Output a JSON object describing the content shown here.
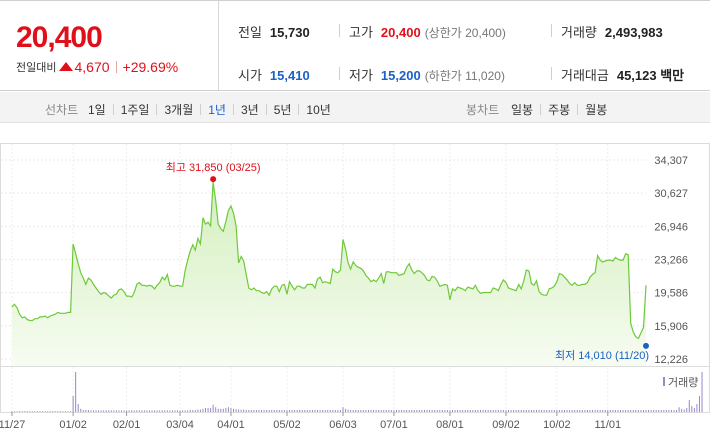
{
  "summary": {
    "price": "20,400",
    "change_label": "전일대비",
    "change_amount": "4,670",
    "change_pct": "+29.69%",
    "prev_close": {
      "label": "전일",
      "value": "15,730"
    },
    "high": {
      "label": "고가",
      "value": "20,400",
      "sub": "(상한가 20,400)"
    },
    "volume": {
      "label": "거래량",
      "value": "2,493,983"
    },
    "open": {
      "label": "시가",
      "value": "15,410"
    },
    "low": {
      "label": "저가",
      "value": "15,200",
      "sub": "(하한가 11,020)"
    },
    "turnover": {
      "label": "거래대금",
      "value": "45,123 백만"
    }
  },
  "period_tabs": {
    "title": "선차트",
    "items": [
      "1일",
      "1주일",
      "3개월",
      "1년",
      "3년",
      "5년",
      "10년"
    ],
    "active": "1년"
  },
  "candle_tabs": {
    "title": "봉차트",
    "items": [
      "일봉",
      "주봉",
      "월봉"
    ]
  },
  "colors": {
    "up": "#e0101b",
    "down": "#1a60c8",
    "line": "#6ec93a",
    "area_top": "#d9f3c7",
    "volume": "#9b87c9",
    "tab_active": "#1a60c8"
  },
  "chart_data": {
    "type": "area",
    "ylim": [
      12226,
      34307
    ],
    "y_ticks": [
      "34,307",
      "30,627",
      "26,946",
      "23,266",
      "19,586",
      "15,906",
      "12,226"
    ],
    "x_tick_labels": [
      "11/27",
      "01/02",
      "02/01",
      "03/04",
      "04/01",
      "05/02",
      "06/03",
      "07/01",
      "08/01",
      "09/02",
      "10/02",
      "11/01"
    ],
    "x_tick_index": [
      0,
      24,
      45,
      66,
      86,
      108,
      130,
      150,
      172,
      194,
      214,
      234
    ],
    "max_label": "최고 31,850 (03/25)",
    "min_label": "최저 14,010 (11/20)",
    "max_index": 79,
    "max_value": 31850,
    "min_index": 249,
    "min_value": 14010,
    "volume_label": "거래량",
    "series": [
      {
        "name": "",
        "values": [
          18000,
          18300,
          17900,
          17200,
          16800,
          16900,
          16600,
          16500,
          16500,
          16700,
          16700,
          16900,
          16900,
          17000,
          16800,
          17000,
          17100,
          17200,
          17400,
          17300,
          17300,
          17300,
          17400,
          17400,
          25000,
          23900,
          22800,
          21800,
          21200,
          20500,
          21200,
          21000,
          20500,
          20100,
          19700,
          19400,
          19600,
          19500,
          19200,
          19000,
          19300,
          19400,
          19900,
          20000,
          19700,
          19200,
          19200,
          19100,
          19600,
          20500,
          20700,
          20400,
          20400,
          20300,
          20400,
          20300,
          20000,
          20400,
          20700,
          21300,
          21000,
          21600,
          20400,
          20300,
          20300,
          20400,
          20300,
          20300,
          22000,
          23200,
          24200,
          24900,
          24300,
          25600,
          25000,
          27900,
          27200,
          27400,
          27000,
          31850,
          29800,
          27200,
          26700,
          26400,
          27500,
          28700,
          29200,
          28400,
          27000,
          22900,
          23600,
          23100,
          21600,
          20100,
          19900,
          20100,
          19800,
          19800,
          19600,
          19500,
          19700,
          19300,
          20000,
          20300,
          20300,
          19700,
          20400,
          20500,
          19400,
          20800,
          20300,
          19900,
          20300,
          20300,
          20100,
          20100,
          20500,
          20500,
          20500,
          20100,
          21100,
          21300,
          20700,
          20800,
          20700,
          20600,
          22200,
          21900,
          21800,
          22100,
          25500,
          24400,
          22900,
          22200,
          23000,
          22600,
          22400,
          22300,
          22000,
          21500,
          21200,
          20800,
          21000,
          20800,
          21200,
          21700,
          20600,
          21900,
          21900,
          21800,
          21800,
          21800,
          21500,
          21600,
          21700,
          22400,
          22800,
          22100,
          21700,
          22000,
          22000,
          21800,
          21500,
          21000,
          20900,
          21400,
          21300,
          20900,
          20300,
          20400,
          20500,
          20400,
          18800,
          20000,
          19800,
          20200,
          20100,
          20000,
          19800,
          20200,
          20100,
          20000,
          20400,
          19800,
          19500,
          19600,
          19600,
          19600,
          19600,
          20100,
          20000,
          19800,
          20500,
          21000,
          20700,
          20100,
          20000,
          19900,
          19800,
          20500,
          20000,
          20900,
          22100,
          22000,
          20600,
          20400,
          20900,
          19700,
          19400,
          19300,
          19300,
          20000,
          20100,
          20300,
          20800,
          21700,
          21600,
          21300,
          21000,
          20600,
          20400,
          20700,
          20400,
          20400,
          20500,
          20500,
          20700,
          21300,
          21600,
          21800,
          23700,
          23200,
          23000,
          23100,
          23200,
          23200,
          23100,
          23500,
          23300,
          23200,
          23200,
          23900,
          23800,
          16200,
          15200,
          14700,
          14500,
          15100,
          15730,
          20400
        ]
      }
    ],
    "volume": [
      2,
      2,
      2,
      2,
      2,
      2,
      2,
      2,
      2,
      2,
      2,
      2,
      2,
      2,
      2,
      2,
      2,
      2,
      2,
      2,
      2,
      2,
      2,
      2,
      40,
      100,
      20,
      8,
      5,
      5,
      5,
      4,
      4,
      4,
      4,
      4,
      4,
      4,
      4,
      4,
      4,
      4,
      4,
      4,
      4,
      4,
      4,
      4,
      4,
      4,
      4,
      4,
      4,
      4,
      4,
      4,
      4,
      4,
      4,
      4,
      4,
      4,
      4,
      4,
      4,
      4,
      4,
      4,
      4,
      4,
      5,
      5,
      5,
      6,
      6,
      8,
      10,
      10,
      10,
      18,
      12,
      8,
      8,
      8,
      10,
      12,
      10,
      8,
      7,
      6,
      6,
      6,
      5,
      5,
      5,
      5,
      5,
      5,
      5,
      5,
      5,
      5,
      5,
      5,
      5,
      5,
      5,
      5,
      5,
      5,
      5,
      5,
      5,
      5,
      5,
      5,
      5,
      5,
      5,
      5,
      5,
      5,
      5,
      5,
      5,
      5,
      5,
      5,
      5,
      5,
      12,
      8,
      6,
      5,
      5,
      5,
      5,
      5,
      5,
      5,
      5,
      5,
      5,
      5,
      5,
      5,
      5,
      5,
      5,
      5,
      5,
      5,
      5,
      5,
      5,
      5,
      5,
      5,
      5,
      5,
      5,
      5,
      5,
      5,
      5,
      5,
      5,
      5,
      5,
      5,
      5,
      5,
      5,
      5,
      5,
      5,
      5,
      5,
      5,
      5,
      5,
      5,
      5,
      5,
      5,
      5,
      5,
      5,
      5,
      5,
      5,
      5,
      5,
      5,
      5,
      5,
      5,
      5,
      5,
      5,
      5,
      5,
      5,
      5,
      5,
      5,
      5,
      5,
      5,
      5,
      5,
      5,
      5,
      5,
      5,
      5,
      5,
      5,
      5,
      5,
      5,
      5,
      5,
      5,
      5,
      5,
      5,
      5,
      5,
      5,
      5,
      5,
      5,
      5,
      5,
      5,
      5,
      5,
      5,
      5,
      5,
      5,
      5,
      5,
      5,
      5,
      5,
      5,
      5,
      5,
      5,
      5,
      5,
      5,
      5,
      5,
      5,
      5,
      5,
      5,
      5,
      5,
      12,
      8,
      6,
      10,
      30,
      15,
      10,
      20,
      40,
      100
    ]
  }
}
